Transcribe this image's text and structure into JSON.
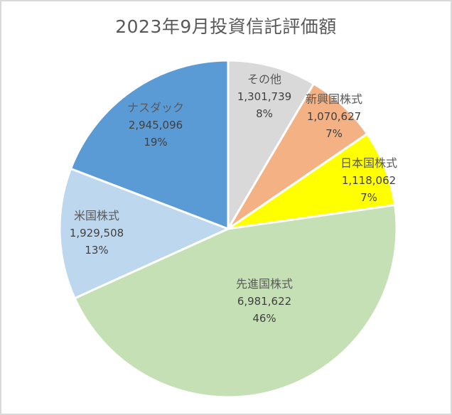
{
  "chart_data": {
    "type": "pie",
    "title": "2023年9月投資信託評価額",
    "start_angle_deg": 0,
    "direction": "clockwise",
    "total": 15346654,
    "slices": [
      {
        "label": "その他",
        "value": 1301739,
        "value_text": "1,301,739",
        "percent_text": "8%",
        "color": "#d9d9d9"
      },
      {
        "label": "新興国株式",
        "value": 1070627,
        "value_text": "1,070,627",
        "percent_text": "7%",
        "color": "#f4b183"
      },
      {
        "label": "日本国株式",
        "value": 1118062,
        "value_text": "1,118,062",
        "percent_text": "7%",
        "color": "#ffff00"
      },
      {
        "label": "先進国株式",
        "value": 6981622,
        "value_text": "6,981,622",
        "percent_text": "46%",
        "color": "#c5e0b4"
      },
      {
        "label": "米国株式",
        "value": 1929508,
        "value_text": "1,929,508",
        "percent_text": "13%",
        "color": "#bdd7ee"
      },
      {
        "label": "ナスダック",
        "value": 2945096,
        "value_text": "2,945,096",
        "percent_text": "19%",
        "color": "#5b9bd5"
      }
    ],
    "legend": "none",
    "data_labels": "category name, value, percentage"
  }
}
